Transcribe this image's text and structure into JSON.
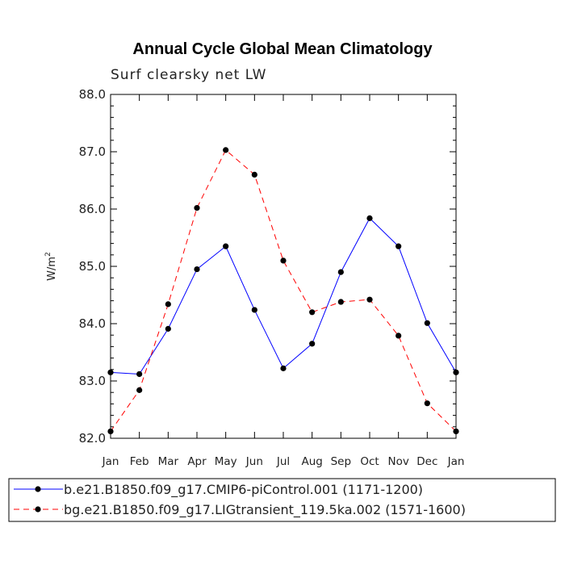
{
  "chart_data": {
    "type": "line",
    "title": "Annual Cycle Global Mean Climatology",
    "subtitle": "Surf clearsky net LW",
    "xlabel": "",
    "ylabel": "W/m",
    "ylabel_exponent": "2",
    "categories": [
      "Jan",
      "Feb",
      "Mar",
      "Apr",
      "May",
      "Jun",
      "Jul",
      "Aug",
      "Sep",
      "Oct",
      "Nov",
      "Dec",
      "Jan"
    ],
    "ylim": [
      82.0,
      88.0
    ],
    "yticks": [
      "82.0",
      "83.0",
      "84.0",
      "85.0",
      "86.0",
      "87.0",
      "88.0"
    ],
    "grid": false,
    "legend_position": "bottom",
    "series": [
      {
        "name": "b.e21.B1850.f09_g17.CMIP6-piControl.001 (1171-1200)",
        "color": "#0000ff",
        "dash": "solid",
        "values": [
          83.15,
          83.12,
          83.91,
          84.95,
          85.35,
          84.24,
          83.22,
          83.65,
          84.9,
          85.84,
          85.35,
          84.01,
          83.15
        ]
      },
      {
        "name": "bg.e21.B1850.f09_g17.LIGtransient_119.5ka.002 (1571-1600)",
        "color": "#ff0000",
        "dash": "dashed",
        "values": [
          82.12,
          82.84,
          84.34,
          86.02,
          87.03,
          86.6,
          85.1,
          84.2,
          84.38,
          84.42,
          83.79,
          82.61,
          82.12
        ]
      }
    ]
  }
}
